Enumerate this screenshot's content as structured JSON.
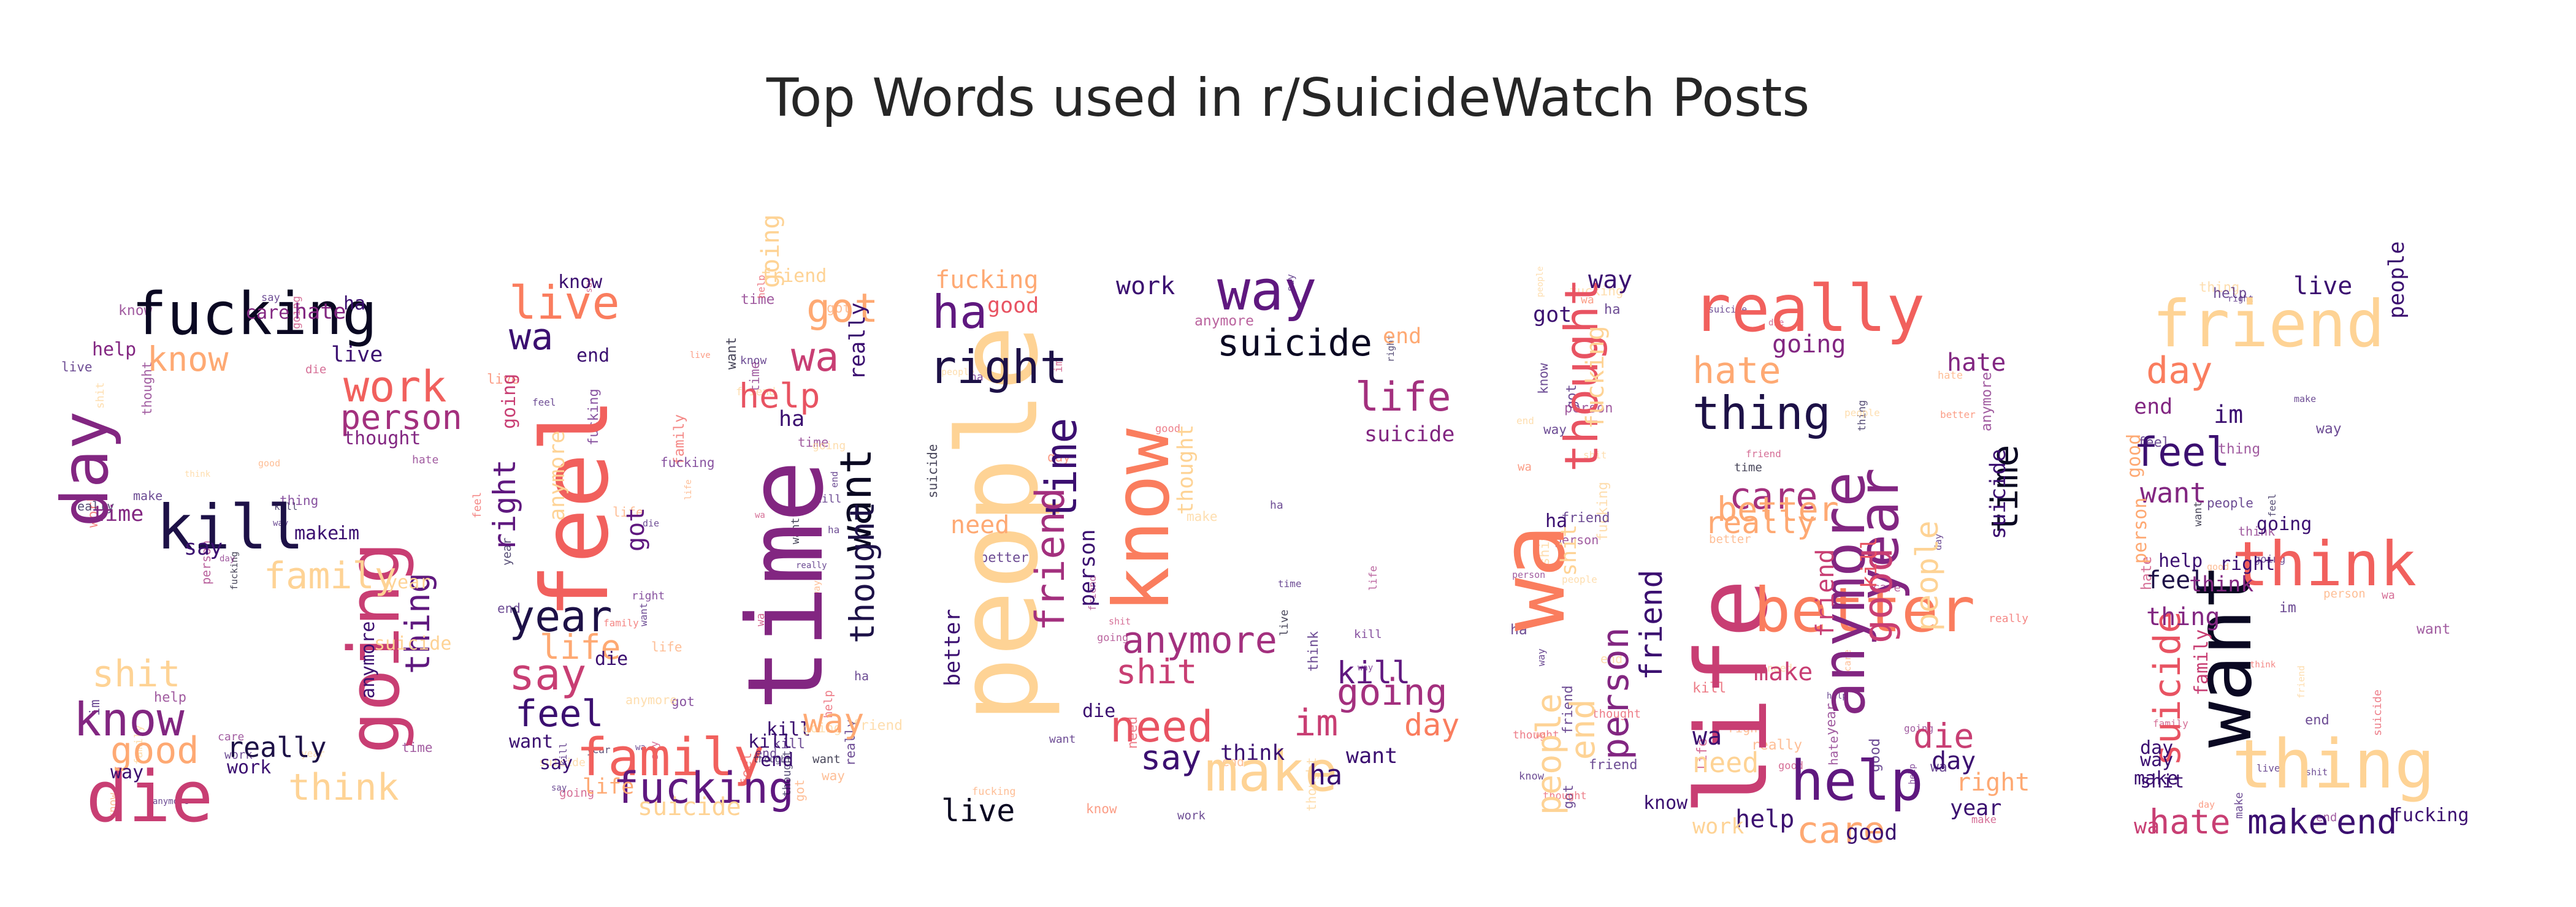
{
  "title": "Top Words used in r/SuicideWatch Posts",
  "mask_word": "SUICIDE",
  "palette": [
    "#fcfdbf",
    "#fed395",
    "#fea973",
    "#fa7d5e",
    "#f1605d",
    "#e85362",
    "#c83e73",
    "#a3307e",
    "#822681",
    "#5f187f",
    "#3b0f70",
    "#1d1147",
    "#0a0822",
    "#000004"
  ],
  "letters": [
    {
      "letter": "S",
      "words": [
        {
          "text": "fucking",
          "c": "#0a0822"
        },
        {
          "text": "day",
          "c": "#822681"
        },
        {
          "text": "kill",
          "c": "#1d1147"
        },
        {
          "text": "going",
          "c": "#c83e73"
        },
        {
          "text": "die",
          "c": "#c83e73"
        },
        {
          "text": "know",
          "c": "#822681"
        },
        {
          "text": "work",
          "c": "#f1605d"
        },
        {
          "text": "person",
          "c": "#a3307e"
        },
        {
          "text": "know",
          "c": "#fea973"
        },
        {
          "text": "good",
          "c": "#fea973"
        },
        {
          "text": "think",
          "c": "#fed395"
        },
        {
          "text": "family",
          "c": "#fed395"
        },
        {
          "text": "thing",
          "c": "#5f187f"
        },
        {
          "text": "shit",
          "c": "#fed395"
        },
        {
          "text": "really",
          "c": "#1d1147"
        },
        {
          "text": "hate",
          "c": "#822681"
        },
        {
          "text": "care",
          "c": "#822681"
        },
        {
          "text": "thought",
          "c": "#822681"
        },
        {
          "text": "help",
          "c": "#822681"
        },
        {
          "text": "time",
          "c": "#822681"
        },
        {
          "text": "say",
          "c": "#3b0f70"
        },
        {
          "text": "make",
          "c": "#3b0f70"
        },
        {
          "text": "anymore",
          "c": "#3b0f70"
        },
        {
          "text": "way",
          "c": "#3b0f70"
        },
        {
          "text": "work",
          "c": "#3b0f70"
        },
        {
          "text": "im",
          "c": "#3b0f70"
        },
        {
          "text": "live",
          "c": "#3b0f70"
        },
        {
          "text": "year",
          "c": "#fed395"
        },
        {
          "text": "suicide",
          "c": "#fed395"
        },
        {
          "text": "ha",
          "c": "#3b0f70"
        }
      ]
    },
    {
      "letter": "U",
      "words": [
        {
          "text": "feel",
          "c": "#f1605d"
        },
        {
          "text": "family",
          "c": "#f1605d"
        },
        {
          "text": "live",
          "c": "#fa7d5e"
        },
        {
          "text": "year",
          "c": "#1d1147"
        },
        {
          "text": "fucking",
          "c": "#5f187f"
        },
        {
          "text": "life",
          "c": "#fea973"
        },
        {
          "text": "say",
          "c": "#c83e73"
        },
        {
          "text": "feel",
          "c": "#3b0f70"
        },
        {
          "text": "wa",
          "c": "#3b0f70"
        },
        {
          "text": "right",
          "c": "#5f187f"
        },
        {
          "text": "got",
          "c": "#5f187f"
        },
        {
          "text": "know",
          "c": "#3b0f70"
        },
        {
          "text": "suicide",
          "c": "#fed395"
        },
        {
          "text": "want",
          "c": "#3b0f70"
        },
        {
          "text": "going",
          "c": "#c83e73"
        },
        {
          "text": "end",
          "c": "#3b0f70"
        },
        {
          "text": "die",
          "c": "#3b0f70"
        },
        {
          "text": "say",
          "c": "#3b0f70"
        },
        {
          "text": "life",
          "c": "#fea973"
        },
        {
          "text": "kill",
          "c": "#3b0f70"
        },
        {
          "text": "anymore",
          "c": "#fed395"
        }
      ]
    },
    {
      "letter": "I",
      "words": [
        {
          "text": "time",
          "c": "#822681"
        },
        {
          "text": "want",
          "c": "#0a0822"
        },
        {
          "text": "thought",
          "c": "#1d1147"
        },
        {
          "text": "got",
          "c": "#fea973"
        },
        {
          "text": "wa",
          "c": "#c83e73"
        },
        {
          "text": "help",
          "c": "#e85362"
        },
        {
          "text": "way",
          "c": "#fea973"
        },
        {
          "text": "really",
          "c": "#3b0f70"
        },
        {
          "text": "ha",
          "c": "#3b0f70"
        },
        {
          "text": "going",
          "c": "#fed395"
        },
        {
          "text": "friend",
          "c": "#fed395"
        },
        {
          "text": "kill",
          "c": "#3b0f70"
        },
        {
          "text": "end",
          "c": "#3b0f70"
        }
      ]
    },
    {
      "letter": "C",
      "words": [
        {
          "text": "people",
          "c": "#fed395"
        },
        {
          "text": "know",
          "c": "#fa7d5e"
        },
        {
          "text": "way",
          "c": "#5f187f"
        },
        {
          "text": "suicide",
          "c": "#0a0822"
        },
        {
          "text": "life",
          "c": "#a3307e"
        },
        {
          "text": "ha",
          "c": "#5f187f"
        },
        {
          "text": "right",
          "c": "#1d1147"
        },
        {
          "text": "time",
          "c": "#3b0f70"
        },
        {
          "text": "friend",
          "c": "#a3307e"
        },
        {
          "text": "anymore",
          "c": "#a3307e"
        },
        {
          "text": "shit",
          "c": "#c83e73"
        },
        {
          "text": "going",
          "c": "#a3307e"
        },
        {
          "text": "need",
          "c": "#e85362"
        },
        {
          "text": "make",
          "c": "#fed395"
        },
        {
          "text": "say",
          "c": "#3b0f70"
        },
        {
          "text": "im",
          "c": "#c83e73"
        },
        {
          "text": "kill",
          "c": "#5f187f"
        },
        {
          "text": "day",
          "c": "#fa7d5e"
        },
        {
          "text": "live",
          "c": "#0a0822"
        },
        {
          "text": "fucking",
          "c": "#fea973"
        },
        {
          "text": "good",
          "c": "#e85362"
        },
        {
          "text": "work",
          "c": "#3b0f70"
        },
        {
          "text": "thought",
          "c": "#fed395"
        },
        {
          "text": "better",
          "c": "#3b0f70"
        },
        {
          "text": "want",
          "c": "#3b0f70"
        },
        {
          "text": "ha",
          "c": "#3b0f70"
        },
        {
          "text": "think",
          "c": "#3b0f70"
        },
        {
          "text": "end",
          "c": "#fea973"
        },
        {
          "text": "suicide",
          "c": "#822681"
        },
        {
          "text": "need",
          "c": "#fea973"
        },
        {
          "text": "person",
          "c": "#3b0f70"
        },
        {
          "text": "die",
          "c": "#3b0f70"
        }
      ]
    },
    {
      "letter": "I",
      "words": [
        {
          "text": "wa",
          "c": "#fa7d5e"
        },
        {
          "text": "thought",
          "c": "#e85362"
        },
        {
          "text": "person",
          "c": "#822681"
        },
        {
          "text": "friend",
          "c": "#3b0f70"
        },
        {
          "text": "end",
          "c": "#fed395"
        },
        {
          "text": "people",
          "c": "#fed395"
        },
        {
          "text": "way",
          "c": "#3b0f70"
        },
        {
          "text": "got",
          "c": "#3b0f70"
        },
        {
          "text": "fucking",
          "c": "#fed395"
        },
        {
          "text": "shit",
          "c": "#fed395"
        },
        {
          "text": "ha",
          "c": "#3b0f70"
        },
        {
          "text": "know",
          "c": "#3b0f70"
        }
      ]
    },
    {
      "letter": "D",
      "words": [
        {
          "text": "life",
          "c": "#c83e73"
        },
        {
          "text": "really",
          "c": "#f1605d"
        },
        {
          "text": "better",
          "c": "#fa7d5e"
        },
        {
          "text": "anymore",
          "c": "#822681"
        },
        {
          "text": "year",
          "c": "#822681"
        },
        {
          "text": "help",
          "c": "#5f187f"
        },
        {
          "text": "thing",
          "c": "#1d1147"
        },
        {
          "text": "good",
          "c": "#c83e73"
        },
        {
          "text": "time",
          "c": "#0a0822"
        },
        {
          "text": "care",
          "c": "#a3307e"
        },
        {
          "text": "better",
          "c": "#fea973"
        },
        {
          "text": "hate",
          "c": "#fea973"
        },
        {
          "text": "going",
          "c": "#822681"
        },
        {
          "text": "people",
          "c": "#fed395"
        },
        {
          "text": "die",
          "c": "#c83e73"
        },
        {
          "text": "care",
          "c": "#fea973"
        },
        {
          "text": "really",
          "c": "#fea973"
        },
        {
          "text": "need",
          "c": "#fed395"
        },
        {
          "text": "wa",
          "c": "#3b0f70"
        },
        {
          "text": "make",
          "c": "#c83e73"
        },
        {
          "text": "help",
          "c": "#3b0f70"
        },
        {
          "text": "suicide",
          "c": "#3b0f70"
        },
        {
          "text": "friend",
          "c": "#c83e73"
        },
        {
          "text": "hate",
          "c": "#822681"
        },
        {
          "text": "right",
          "c": "#fea973"
        },
        {
          "text": "day",
          "c": "#3b0f70"
        },
        {
          "text": "kill",
          "c": "#e85362"
        },
        {
          "text": "good",
          "c": "#3b0f70"
        },
        {
          "text": "work",
          "c": "#fed395"
        },
        {
          "text": "year",
          "c": "#3b0f70"
        }
      ]
    },
    {
      "letter": "E",
      "words": [
        {
          "text": "friend",
          "c": "#fed395"
        },
        {
          "text": "want",
          "c": "#0a0822"
        },
        {
          "text": "thing",
          "c": "#fed395"
        },
        {
          "text": "think",
          "c": "#f1605d"
        },
        {
          "text": "day",
          "c": "#fa7d5e"
        },
        {
          "text": "feel",
          "c": "#3b0f70"
        },
        {
          "text": "suicide",
          "c": "#e85362"
        },
        {
          "text": "hate",
          "c": "#c83e73"
        },
        {
          "text": "make",
          "c": "#3b0f70"
        },
        {
          "text": "end",
          "c": "#3b0f70"
        },
        {
          "text": "live",
          "c": "#3b0f70"
        },
        {
          "text": "feel",
          "c": "#1d1147"
        },
        {
          "text": "thing",
          "c": "#822681"
        },
        {
          "text": "want",
          "c": "#822681"
        },
        {
          "text": "im",
          "c": "#3b0f70"
        },
        {
          "text": "end",
          "c": "#822681"
        },
        {
          "text": "think",
          "c": "#822681"
        },
        {
          "text": "people",
          "c": "#3b0f70"
        },
        {
          "text": "good",
          "c": "#fea973"
        },
        {
          "text": "help",
          "c": "#3b0f70"
        },
        {
          "text": "going",
          "c": "#3b0f70"
        },
        {
          "text": "wa",
          "c": "#c83e73"
        },
        {
          "text": "make",
          "c": "#3b0f70"
        },
        {
          "text": "person",
          "c": "#fea973"
        },
        {
          "text": "family",
          "c": "#c83e73"
        },
        {
          "text": "right",
          "c": "#3b0f70"
        },
        {
          "text": "way",
          "c": "#3b0f70"
        },
        {
          "text": "shit",
          "c": "#3b0f70"
        },
        {
          "text": "fucking",
          "c": "#3b0f70"
        },
        {
          "text": "day",
          "c": "#3b0f70"
        }
      ]
    }
  ]
}
